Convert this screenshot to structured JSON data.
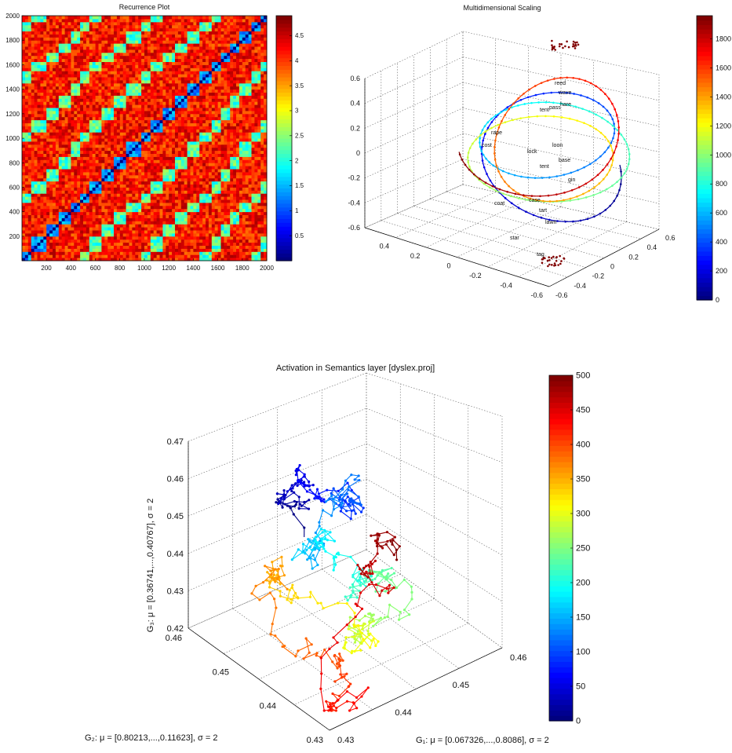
{
  "chart_data": [
    {
      "type": "heatmap",
      "title": "Recurrence Plot",
      "xlim": [
        1,
        2000
      ],
      "ylim": [
        1,
        2000
      ],
      "x_ticks": [
        "200",
        "400",
        "600",
        "800",
        "1000",
        "1200",
        "1400",
        "1600",
        "1800",
        "2000"
      ],
      "y_ticks": [
        "200",
        "400",
        "600",
        "800",
        "1000",
        "1200",
        "1400",
        "1600",
        "1800",
        "2000"
      ],
      "colorbar": {
        "min": 0,
        "max": 4.9,
        "ticks": [
          "0.5",
          "1",
          "1.5",
          "2",
          "2.5",
          "3",
          "3.5",
          "4",
          "4.5"
        ]
      },
      "colormap": "jet",
      "diagonal": "line of identity with value ≈ 0",
      "block_boundaries": [
        1,
        80,
        200,
        300,
        400,
        470,
        540,
        660,
        760,
        860,
        980,
        1060,
        1160,
        1260,
        1360,
        1460,
        1540,
        1620,
        1700,
        1780,
        1880,
        1960,
        2000
      ]
    },
    {
      "type": "scatter",
      "title": "Multidimensional Scaling",
      "dimensions": 3,
      "xlim": [
        -0.6,
        0.6
      ],
      "ylim": [
        -0.6,
        0.6
      ],
      "zlim": [
        -0.6,
        0.6
      ],
      "z_ticks": [
        "-0.6",
        "-0.4",
        "-0.2",
        "0",
        "0.2",
        "0.4",
        "0.6"
      ],
      "x_ticks": [
        "-0.6",
        "-0.4",
        "-0.2",
        "0",
        "0.2",
        "0.4",
        "0.6"
      ],
      "y_ticks": [
        "-0.6",
        "-0.4",
        "-0.2",
        "0",
        "0.2",
        "0.4"
      ],
      "colorbar": {
        "min": 0,
        "max": 1960,
        "ticks": [
          "0",
          "200",
          "400",
          "600",
          "800",
          "1000",
          "1200",
          "1400",
          "1600",
          "1800"
        ]
      },
      "colormap": "jet",
      "point_labels": [
        "reed",
        "wave",
        "pass",
        "tent",
        "hare",
        "rape",
        "cost",
        "lock",
        "loon",
        "base",
        "tent",
        "gin",
        "case",
        "tart",
        "lawn",
        "coat",
        "star",
        "tag"
      ],
      "grid": true
    },
    {
      "type": "scatter",
      "title": "Activation in Semantics layer [dyslex.proj]",
      "dimensions": 3,
      "xlabel": "G₁: μ = [0.067326,...,0.8086], σ = 2",
      "ylabel": "G₂: μ = [0.80213,...,0.11623], σ = 2",
      "zlabel": "G₃: μ = [0.36741,...,0.40767], σ = 2",
      "xlim": [
        0.43,
        0.46
      ],
      "ylim": [
        0.43,
        0.46
      ],
      "zlim": [
        0.42,
        0.47
      ],
      "x_ticks": [
        "0.43",
        "0.44",
        "0.45",
        "0.46"
      ],
      "y_ticks": [
        "0.43",
        "0.44",
        "0.45",
        "0.46"
      ],
      "z_ticks": [
        "0.42",
        "0.43",
        "0.44",
        "0.45",
        "0.46",
        "0.47"
      ],
      "colorbar": {
        "min": 0,
        "max": 500,
        "ticks": [
          "0",
          "50",
          "100",
          "150",
          "200",
          "250",
          "300",
          "350",
          "400",
          "450",
          "500"
        ]
      },
      "colormap": "jet",
      "grid": true
    }
  ]
}
